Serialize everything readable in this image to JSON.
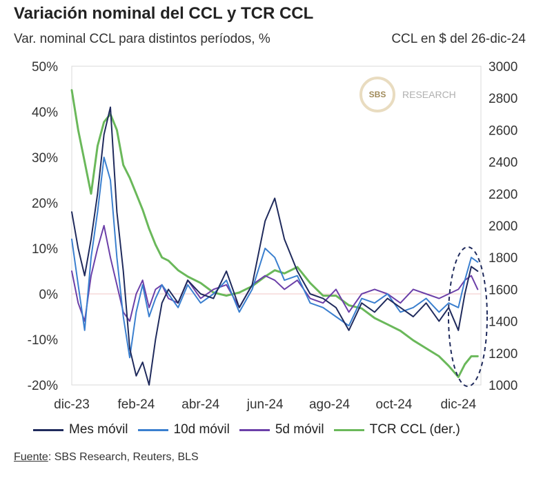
{
  "title": "Variación nominal del CCL y TCR CCL",
  "subtitle_left": "Var. nominal CCL para distintos períodos, %",
  "subtitle_right": "CCL en $ del 26-dic-24",
  "source_label": "Fuente",
  "source_text": ": SBS Research, Reuters, BLS",
  "watermark": {
    "logo": "SBS",
    "text": "RESEARCH"
  },
  "colors": {
    "mes": "#1f2a5c",
    "d10": "#3a7fcf",
    "d5": "#6b3fa8",
    "tcr": "#6ab85a"
  },
  "chart_data": {
    "type": "line",
    "title": "Variación nominal del CCL y TCR CCL",
    "xlabel": "",
    "ylabel": "Var. nominal CCL para distintos períodos, %",
    "ylabel_right": "CCL en $ del 26-dic-24",
    "x_ticks": [
      "dic-23",
      "feb-24",
      "abr-24",
      "jun-24",
      "ago-24",
      "oct-24",
      "dic-24"
    ],
    "x_tick_months": [
      0,
      2,
      4,
      6,
      8,
      10,
      12
    ],
    "x_range_months": [
      0,
      12.7
    ],
    "ylim": [
      -20,
      50
    ],
    "y_ticks": [
      "50%",
      "40%",
      "30%",
      "20%",
      "10%",
      "0%",
      "-10%",
      "-20%"
    ],
    "y_tick_values": [
      50,
      40,
      30,
      20,
      10,
      0,
      -10,
      -20
    ],
    "ylim_right": [
      1000,
      3000
    ],
    "y_ticks_right": [
      "3000",
      "2800",
      "2600",
      "2400",
      "2200",
      "2000",
      "1800",
      "1600",
      "1400",
      "1200",
      "1000"
    ],
    "y_tick_values_right": [
      3000,
      2800,
      2600,
      2400,
      2200,
      2000,
      1800,
      1600,
      1400,
      1200,
      1000
    ],
    "series": [
      {
        "key": "mes",
        "name": "Mes móvil",
        "axis": "left",
        "x": [
          0,
          0.2,
          0.4,
          0.6,
          0.8,
          1.0,
          1.2,
          1.4,
          1.6,
          1.8,
          2.0,
          2.2,
          2.4,
          2.6,
          2.8,
          3.0,
          3.3,
          3.6,
          4.0,
          4.4,
          4.8,
          5.2,
          5.6,
          6.0,
          6.3,
          6.6,
          7.0,
          7.4,
          7.8,
          8.2,
          8.6,
          9.0,
          9.4,
          9.8,
          10.2,
          10.6,
          11.0,
          11.4,
          11.7,
          12.0,
          12.2,
          12.4,
          12.6
        ],
        "values": [
          18,
          10,
          4,
          12,
          22,
          35,
          41,
          18,
          5,
          -12,
          -18,
          -15,
          -20,
          -10,
          -2,
          1,
          -2,
          3,
          0,
          -1,
          5,
          -3,
          2,
          16,
          21,
          12,
          5,
          0,
          -1,
          -3,
          -8,
          -2,
          -4,
          -1,
          -3,
          -5,
          -2,
          -6,
          -3,
          -8,
          0,
          6,
          5
        ]
      },
      {
        "key": "d10",
        "name": "10d móvil",
        "axis": "left",
        "x": [
          0,
          0.2,
          0.4,
          0.6,
          0.8,
          1.0,
          1.2,
          1.4,
          1.6,
          1.8,
          2.0,
          2.2,
          2.4,
          2.6,
          2.8,
          3.0,
          3.3,
          3.6,
          4.0,
          4.4,
          4.8,
          5.2,
          5.6,
          6.0,
          6.3,
          6.6,
          7.0,
          7.4,
          7.8,
          8.2,
          8.6,
          9.0,
          9.4,
          9.8,
          10.2,
          10.6,
          11.0,
          11.4,
          11.7,
          12.0,
          12.2,
          12.4,
          12.6
        ],
        "values": [
          12,
          2,
          -8,
          8,
          18,
          30,
          25,
          8,
          -5,
          -14,
          -4,
          2,
          -5,
          -1,
          2,
          0,
          -3,
          2,
          -2,
          0,
          3,
          -4,
          1,
          10,
          8,
          3,
          4,
          -2,
          -3,
          -5,
          -7,
          -1,
          -2,
          0,
          -4,
          -3,
          -1,
          -4,
          -2,
          -3,
          3,
          8,
          7
        ]
      },
      {
        "key": "d5",
        "name": "5d móvil",
        "axis": "left",
        "x": [
          0,
          0.2,
          0.4,
          0.6,
          0.8,
          1.0,
          1.2,
          1.4,
          1.6,
          1.8,
          2.0,
          2.2,
          2.4,
          2.6,
          2.8,
          3.0,
          3.3,
          3.6,
          4.0,
          4.4,
          4.8,
          5.2,
          5.6,
          6.0,
          6.3,
          6.6,
          7.0,
          7.4,
          7.8,
          8.2,
          8.6,
          9.0,
          9.4,
          9.8,
          10.2,
          10.6,
          11.0,
          11.4,
          11.7,
          12.0,
          12.2,
          12.4,
          12.6
        ],
        "values": [
          5,
          -2,
          -6,
          4,
          10,
          15,
          8,
          2,
          -4,
          -6,
          0,
          3,
          -3,
          1,
          2,
          -1,
          -2,
          3,
          -1,
          1,
          2,
          -3,
          2,
          4,
          3,
          1,
          3,
          -1,
          -2,
          1,
          -4,
          0,
          1,
          0,
          -2,
          1,
          0,
          -1,
          0,
          1,
          3,
          4,
          1
        ]
      },
      {
        "key": "tcr",
        "name": "TCR CCL (der.)",
        "axis": "right",
        "x": [
          0,
          0.2,
          0.4,
          0.6,
          0.8,
          1.0,
          1.2,
          1.4,
          1.6,
          1.8,
          2.0,
          2.2,
          2.4,
          2.6,
          2.8,
          3.0,
          3.3,
          3.6,
          4.0,
          4.4,
          4.8,
          5.2,
          5.6,
          6.0,
          6.3,
          6.6,
          7.0,
          7.4,
          7.8,
          8.2,
          8.6,
          9.0,
          9.4,
          9.8,
          10.2,
          10.6,
          11.0,
          11.4,
          11.7,
          12.0,
          12.2,
          12.4,
          12.6
        ],
        "values": [
          2850,
          2600,
          2400,
          2200,
          2500,
          2650,
          2700,
          2600,
          2380,
          2300,
          2200,
          2100,
          1980,
          1880,
          1800,
          1780,
          1720,
          1680,
          1640,
          1580,
          1560,
          1580,
          1620,
          1680,
          1720,
          1700,
          1740,
          1640,
          1560,
          1560,
          1500,
          1480,
          1420,
          1380,
          1340,
          1280,
          1230,
          1180,
          1120,
          1050,
          1130,
          1180,
          1180
        ]
      }
    ]
  }
}
